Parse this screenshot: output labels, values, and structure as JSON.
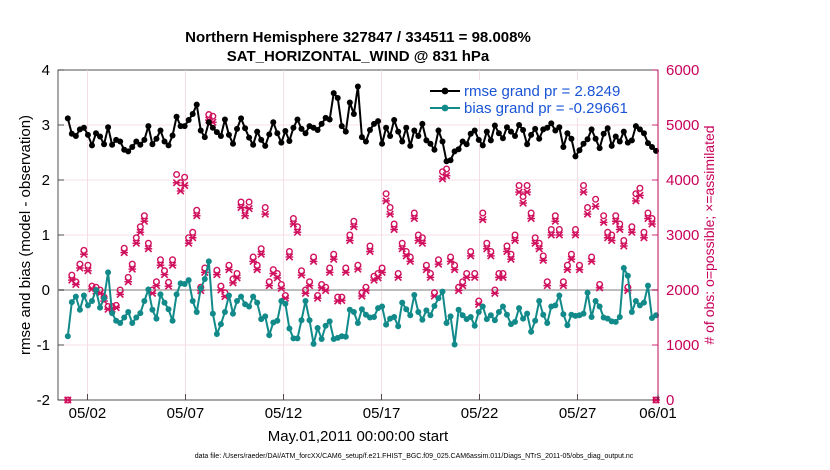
{
  "chart_data": {
    "type": "line",
    "title": "Northern Hemisphere 327847 / 334511 = 98.008%",
    "subtitle": "SAT_HORIZONTAL_WIND @ 831 hPa",
    "xlabel": "May.01,2011 00:00:00 start",
    "ylabel": "rmse and bias (model - observation)",
    "y2label": "# of obs: o=possible; ×=assimilated",
    "ylim": [
      -2,
      4
    ],
    "y2lim": [
      0,
      6000
    ],
    "xlim": [
      0.5,
      31.1
    ],
    "yticks": [
      "-2",
      "-1",
      "0",
      "1",
      "2",
      "3",
      "4"
    ],
    "y2ticks": [
      "0",
      "1000",
      "2000",
      "3000",
      "4000",
      "5000",
      "6000"
    ],
    "xtick_labels": [
      "05/02",
      "05/07",
      "05/12",
      "05/17",
      "05/22",
      "05/27",
      "06/01"
    ],
    "xtick_positions": [
      2,
      7,
      12,
      17,
      22,
      27,
      32
    ],
    "grid": true,
    "legend_position": "top-right",
    "footnote": "data file: /Users/raeder/DAI/ATM_forcXX/CAM6_setup/f.e21.FHIST_BGC.f09_025.CAM6assim.011/Diags_NTrS_2011-05/obs_diag_output.nc",
    "series": [
      {
        "name": "rmse grand pr = 2.8249",
        "axis": "left",
        "color": "#000000",
        "values": [
          3.12,
          2.84,
          2.8,
          2.92,
          2.95,
          2.82,
          2.63,
          2.85,
          2.79,
          2.65,
          2.96,
          2.64,
          2.73,
          2.7,
          2.55,
          2.52,
          2.6,
          2.7,
          2.64,
          2.73,
          2.98,
          2.65,
          2.75,
          2.9,
          2.7,
          2.63,
          2.81,
          3.15,
          2.98,
          2.98,
          3.09,
          3.2,
          3.37,
          2.9,
          2.78,
          3.05,
          2.95,
          2.87,
          2.8,
          3.1,
          2.82,
          2.66,
          2.93,
          3.12,
          2.94,
          2.77,
          2.64,
          2.88,
          2.73,
          2.62,
          2.83,
          3.05,
          2.85,
          2.68,
          2.89,
          2.71,
          2.95,
          3.1,
          2.93,
          2.85,
          2.98,
          2.95,
          2.91,
          3.02,
          3.13,
          3.1,
          3.58,
          3.49,
          2.98,
          2.88,
          3.41,
          3.2,
          3.7,
          2.78,
          2.7,
          2.91,
          3.02,
          3.07,
          2.66,
          2.95,
          2.8,
          3.09,
          2.88,
          2.7,
          2.95,
          2.62,
          2.9,
          2.8,
          3.02,
          2.72,
          2.66,
          2.55,
          2.9,
          2.7,
          2.34,
          2.36,
          2.52,
          2.56,
          2.7,
          2.65,
          2.84,
          2.9,
          2.73,
          2.63,
          2.88,
          2.72,
          2.99,
          2.85,
          2.76,
          2.96,
          2.88,
          2.8,
          3.0,
          2.91,
          2.65,
          2.82,
          2.93,
          2.75,
          2.92,
          2.95,
          3.03,
          2.9,
          2.96,
          2.6,
          2.85,
          2.75,
          2.43,
          2.54,
          2.66,
          2.74,
          2.92,
          2.75,
          2.58,
          2.84,
          2.94,
          2.62,
          2.79,
          2.7,
          2.88,
          2.68,
          2.72,
          2.98,
          2.92,
          2.85,
          2.67,
          2.6,
          2.53
        ]
      },
      {
        "name": "bias grand pr = -0.29661",
        "axis": "left",
        "color": "#138a8a",
        "values": [
          -0.84,
          -0.22,
          -0.12,
          -0.36,
          -0.1,
          -0.28,
          -0.2,
          0.0,
          -0.32,
          -0.15,
          0.32,
          -0.42,
          -0.56,
          -0.6,
          -0.5,
          -0.4,
          -0.6,
          -0.5,
          -0.42,
          -0.2,
          0.01,
          -0.36,
          -0.52,
          -0.08,
          -0.23,
          -0.35,
          -0.56,
          -0.08,
          0.12,
          0.11,
          0.18,
          -0.2,
          -0.4,
          0.03,
          0.2,
          0.52,
          -0.43,
          -0.8,
          -0.62,
          -0.4,
          -0.1,
          -0.43,
          -0.2,
          -0.12,
          -0.26,
          -0.3,
          -0.12,
          -0.23,
          -0.53,
          -0.48,
          -0.82,
          -0.59,
          -0.56,
          -0.2,
          -0.25,
          -0.7,
          -0.88,
          -0.88,
          -0.55,
          -0.2,
          -0.55,
          -0.98,
          -0.69,
          -0.89,
          -0.65,
          -0.57,
          -0.89,
          -0.87,
          -0.84,
          -0.85,
          -0.36,
          -0.4,
          -0.6,
          -0.35,
          -0.45,
          -0.5,
          -0.49,
          -0.33,
          -0.3,
          -0.63,
          -0.52,
          -0.49,
          -0.66,
          -0.23,
          -0.35,
          -0.46,
          -0.09,
          -0.4,
          -0.54,
          -0.37,
          -0.46,
          -0.29,
          -0.15,
          -0.03,
          -0.6,
          -0.48,
          -0.99,
          -0.36,
          -0.46,
          -0.53,
          -0.49,
          -0.65,
          -0.4,
          -0.3,
          -0.53,
          -0.46,
          -0.55,
          -0.4,
          -0.3,
          -0.45,
          -0.62,
          -0.58,
          -0.33,
          -0.52,
          -0.43,
          -0.76,
          -0.56,
          -0.2,
          -0.45,
          -0.6,
          -0.3,
          -0.28,
          -0.1,
          -0.44,
          -0.64,
          -0.45,
          -0.47,
          -0.46,
          -0.43,
          -0.05,
          -0.49,
          -0.2,
          -0.3,
          -0.5,
          -0.52,
          -0.57,
          -0.58,
          -0.49,
          0.4,
          0.26,
          -0.4,
          -0.2,
          -0.28,
          -0.23,
          0.08,
          -0.51,
          -0.46
        ]
      },
      {
        "name": "o = possible",
        "axis": "right",
        "color": "#d0115e",
        "values": [
          0,
          2270,
          2150,
          2470,
          2720,
          2450,
          2070,
          2050,
          2000,
          1870,
          1700,
          1700,
          1720,
          2000,
          2760,
          2230,
          2470,
          2950,
          3150,
          3350,
          2850,
          2000,
          2150,
          2550,
          2350,
          2140,
          2550,
          4100,
          3950,
          4050,
          2950,
          3050,
          3450,
          2050,
          2400,
          5190,
          5160,
          2360,
          2070,
          1950,
          2450,
          2200,
          2300,
          3600,
          3450,
          3600,
          2600,
          2450,
          2750,
          3500,
          2150,
          2370,
          2300,
          2100,
          1900,
          2700,
          3300,
          3150,
          2350,
          2000,
          2150,
          2600,
          1900,
          2100,
          2050,
          2400,
          2650,
          1870,
          1870,
          2400,
          3000,
          3250,
          2450,
          1950,
          2050,
          2800,
          2250,
          2300,
          2400,
          3750,
          3500,
          3200,
          2300,
          2850,
          2700,
          2600,
          3400,
          3000,
          2950,
          2450,
          2300,
          1950,
          2550,
          4150,
          4200,
          2600,
          2450,
          2050,
          2150,
          2300,
          2700,
          2300,
          1800,
          3400,
          2850,
          2700,
          2000,
          2300,
          2300,
          2800,
          2650,
          3000,
          3900,
          3700,
          3900,
          3400,
          2950,
          2850,
          2620,
          2150,
          3100,
          3350,
          3100,
          2150,
          2450,
          2650,
          3100,
          2450,
          3900,
          3500,
          2600,
          3650,
          2100,
          3350,
          3050,
          3000,
          3350,
          3200,
          2900,
          2050,
          3150,
          3750,
          3850,
          3050,
          3400,
          3300,
          0
        ]
      },
      {
        "name": "× = assimilated",
        "axis": "right",
        "color": "#d0115e",
        "values": [
          0,
          2180,
          2100,
          2400,
          2650,
          2350,
          2020,
          1980,
          1940,
          1800,
          1650,
          1650,
          1680,
          1920,
          2680,
          2150,
          2380,
          2850,
          3050,
          3250,
          2750,
          1940,
          2080,
          2450,
          2280,
          2070,
          2450,
          3950,
          3800,
          3900,
          2850,
          2950,
          3350,
          1990,
          2320,
          5090,
          5050,
          2280,
          2000,
          1880,
          2370,
          2130,
          2220,
          3500,
          3350,
          3480,
          2520,
          2370,
          2650,
          3380,
          2080,
          2300,
          2220,
          2030,
          1850,
          2600,
          3200,
          3050,
          2270,
          1940,
          2080,
          2520,
          1850,
          2040,
          1990,
          2320,
          2560,
          1800,
          1810,
          2320,
          2900,
          3150,
          2380,
          1890,
          1990,
          2700,
          2180,
          2220,
          2320,
          3620,
          3380,
          3100,
          2230,
          2750,
          2620,
          2520,
          3300,
          2900,
          2850,
          2370,
          2230,
          1890,
          2470,
          4020,
          4080,
          2520,
          2370,
          1990,
          2080,
          2230,
          2620,
          2230,
          1740,
          3280,
          2750,
          2620,
          1940,
          2230,
          2230,
          2700,
          2560,
          2900,
          3780,
          3580,
          3780,
          3300,
          2850,
          2750,
          2540,
          2080,
          3000,
          3250,
          3000,
          2080,
          2370,
          2560,
          3000,
          2370,
          3780,
          3380,
          2520,
          3520,
          2040,
          3230,
          2950,
          2900,
          3250,
          3100,
          2800,
          1990,
          3050,
          3620,
          3720,
          2950,
          3300,
          3200,
          0
        ]
      }
    ]
  }
}
